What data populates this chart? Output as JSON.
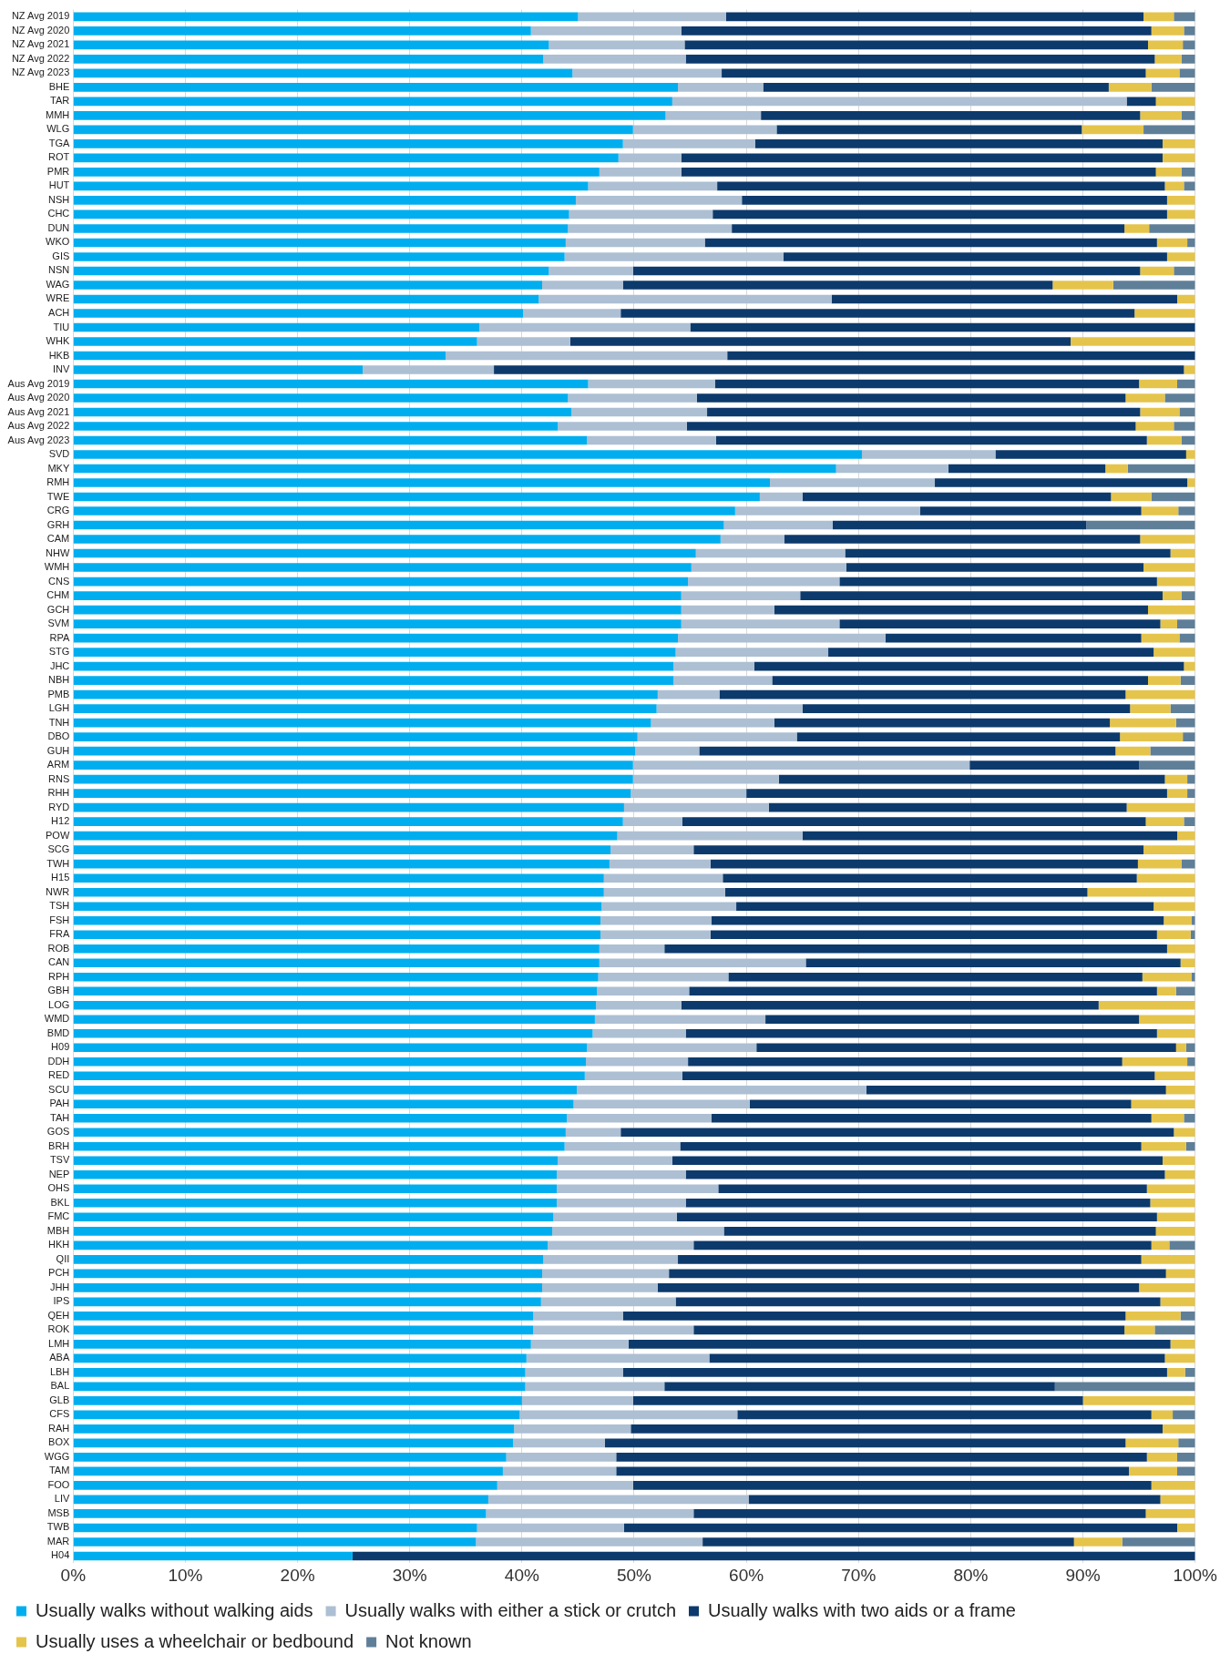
{
  "chart_data": {
    "type": "bar",
    "orientation": "horizontal",
    "stacked": true,
    "grid": "x",
    "legend": "bottom",
    "categories": [
      "NZ Avg 2019",
      "NZ Avg 2020",
      "NZ Avg 2021",
      "NZ Avg 2022",
      "NZ Avg 2023",
      "BHE",
      "TAR",
      "MMH",
      "WLG",
      "TGA",
      "ROT",
      "PMR",
      "HUT",
      "NSH",
      "CHC",
      "DUN",
      "WKO",
      "GIS",
      "NSN",
      "WAG",
      "WRE",
      "ACH",
      "TIU",
      "WHK",
      "HKB",
      "INV",
      "Aus Avg 2019",
      "Aus Avg 2020",
      "Aus Avg 2021",
      "Aus Avg 2022",
      "Aus Avg 2023",
      "SVD",
      "MKY",
      "RMH",
      "TWE",
      "CRG",
      "GRH",
      "CAM",
      "NHW",
      "WMH",
      "CNS",
      "CHM",
      "GCH",
      "SVM",
      "RPA",
      "STG",
      "JHC",
      "NBH",
      "PMB",
      "LGH",
      "TNH",
      "DBO",
      "GUH",
      "ARM",
      "RNS",
      "RHH",
      "RYD",
      "H12",
      "POW",
      "SCG",
      "TWH",
      "H15",
      "NWR",
      "TSH",
      "FSH",
      "FRA",
      "ROB",
      "CAN",
      "RPH",
      "GBH",
      "LOG",
      "WMD",
      "BMD",
      "H09",
      "DDH",
      "RED",
      "SCU",
      "PAH",
      "TAH",
      "GOS",
      "BRH",
      "TSV",
      "NEP",
      "OHS",
      "BKL",
      "FMC",
      "MBH",
      "HKH",
      "QII",
      "PCH",
      "JHH",
      "IPS",
      "QEH",
      "ROK",
      "LMH",
      "ABA",
      "LBH",
      "BAL",
      "GLB",
      "CFS",
      "RAH",
      "BOX",
      "WGG",
      "TAM",
      "FOO",
      "LIV",
      "MSB",
      "TWB",
      "MAR",
      "H04"
    ],
    "xlim": [
      0,
      100
    ],
    "xticks": [
      {
        "value": 0,
        "label": "0%"
      },
      {
        "value": 10,
        "label": "10%"
      },
      {
        "value": 20,
        "label": "20%"
      },
      {
        "value": 30,
        "label": "30%"
      },
      {
        "value": 40,
        "label": "40%"
      },
      {
        "value": 50,
        "label": "50%"
      },
      {
        "value": 60,
        "label": "60%"
      },
      {
        "value": 70,
        "label": "70%"
      },
      {
        "value": 80,
        "label": "80%"
      },
      {
        "value": 90,
        "label": "90%"
      },
      {
        "value": 100,
        "label": "100%"
      }
    ],
    "series": [
      {
        "name": "Usually walks without walking aids",
        "color": "#00aeef",
        "values": [
          45.0,
          40.8,
          42.4,
          41.9,
          44.5,
          53.9,
          53.4,
          52.8,
          49.9,
          49.0,
          48.6,
          46.9,
          45.9,
          44.8,
          44.2,
          44.1,
          43.9,
          43.8,
          42.4,
          41.8,
          41.5,
          40.1,
          36.2,
          36.0,
          33.2,
          25.8,
          45.9,
          44.1,
          44.4,
          43.2,
          45.8,
          70.3,
          68.0,
          62.1,
          61.2,
          59.0,
          58.0,
          57.7,
          55.5,
          55.1,
          54.8,
          54.2,
          54.2,
          54.2,
          53.9,
          53.7,
          53.5,
          53.5,
          52.1,
          52.0,
          51.5,
          50.3,
          50.1,
          49.9,
          49.9,
          49.7,
          49.1,
          49.0,
          48.5,
          47.9,
          47.8,
          47.3,
          47.3,
          47.1,
          47.0,
          47.0,
          46.9,
          46.9,
          46.8,
          46.7,
          46.6,
          46.5,
          46.3,
          45.8,
          45.7,
          45.6,
          44.9,
          44.6,
          44.0,
          43.9,
          43.8,
          43.2,
          43.1,
          43.1,
          43.1,
          42.8,
          42.7,
          42.3,
          41.9,
          41.8,
          41.8,
          41.7,
          41.0,
          41.0,
          40.8,
          40.4,
          40.3,
          40.3,
          40.0,
          39.8,
          39.3,
          39.2,
          38.6,
          38.3,
          37.8,
          37.0,
          36.8,
          36.0,
          35.9,
          24.9
        ]
      },
      {
        "name": "Usually walks with either a stick or crutch",
        "color": "#adbfd3",
        "values": [
          13.2,
          13.4,
          12.1,
          12.7,
          13.3,
          7.6,
          40.5,
          8.5,
          12.8,
          11.8,
          5.6,
          7.3,
          11.5,
          14.8,
          12.8,
          14.6,
          12.4,
          19.5,
          7.5,
          7.2,
          26.1,
          8.7,
          18.8,
          8.3,
          25.1,
          11.7,
          11.3,
          11.5,
          12.1,
          11.5,
          11.5,
          11.9,
          10.0,
          14.7,
          3.8,
          16.5,
          9.7,
          5.7,
          13.3,
          13.8,
          13.5,
          10.6,
          8.3,
          14.1,
          18.5,
          13.6,
          7.2,
          8.8,
          5.5,
          13.0,
          11.0,
          14.2,
          5.7,
          30.0,
          13.0,
          10.3,
          12.9,
          5.3,
          16.5,
          7.4,
          9.0,
          10.6,
          10.8,
          12.0,
          9.9,
          9.8,
          5.8,
          18.4,
          11.6,
          8.2,
          7.6,
          15.2,
          8.3,
          15.1,
          9.1,
          8.7,
          25.8,
          15.7,
          12.9,
          4.9,
          10.3,
          10.2,
          11.5,
          14.4,
          11.5,
          11.0,
          15.3,
          13.0,
          12.0,
          11.3,
          10.3,
          12.0,
          8.0,
          14.3,
          8.7,
          16.3,
          8.7,
          12.4,
          9.9,
          19.4,
          10.4,
          8.2,
          9.8,
          10.1,
          12.1,
          23.2,
          18.5,
          13.1,
          20.2,
          0
        ]
      },
      {
        "name": "Usually walks with two aids or a frame",
        "color": "#0d3a6c",
        "values": [
          37.2,
          41.9,
          41.3,
          41.8,
          37.8,
          30.8,
          2.6,
          33.8,
          27.2,
          36.3,
          42.9,
          42.3,
          39.9,
          37.9,
          40.5,
          35.0,
          40.3,
          34.2,
          45.2,
          38.3,
          30.8,
          45.8,
          45.0,
          44.6,
          41.7,
          61.5,
          37.8,
          38.2,
          38.6,
          40.0,
          38.4,
          17.0,
          14.0,
          22.5,
          27.5,
          19.7,
          22.6,
          31.7,
          29.0,
          26.5,
          28.3,
          32.3,
          33.3,
          28.6,
          22.8,
          29.0,
          38.3,
          33.5,
          36.2,
          29.2,
          29.9,
          28.8,
          37.1,
          15.1,
          34.4,
          37.5,
          31.9,
          41.3,
          33.4,
          40.1,
          38.1,
          36.9,
          32.3,
          37.2,
          40.3,
          39.8,
          44.8,
          33.4,
          36.9,
          41.7,
          37.2,
          33.3,
          42.0,
          37.4,
          38.7,
          42.1,
          26.7,
          34.0,
          39.2,
          49.3,
          41.1,
          43.7,
          42.7,
          38.2,
          41.4,
          42.8,
          38.5,
          40.8,
          41.3,
          44.3,
          42.9,
          43.2,
          44.8,
          38.4,
          48.3,
          40.6,
          48.5,
          34.8,
          40.1,
          36.9,
          47.4,
          46.4,
          47.3,
          45.7,
          46.2,
          36.7,
          40.3,
          49.3,
          33.1,
          75.1
        ]
      },
      {
        "name": "Usually uses a wheelchair or bedbound",
        "color": "#e5c44c",
        "values": [
          2.7,
          2.9,
          3.1,
          2.4,
          3.0,
          3.8,
          3.5,
          3.7,
          5.5,
          2.9,
          2.9,
          2.3,
          1.7,
          2.5,
          2.5,
          2.2,
          2.7,
          2.5,
          3.0,
          5.4,
          1.6,
          5.4,
          0,
          11.1,
          0,
          1.0,
          3.4,
          3.5,
          3.5,
          3.4,
          3.1,
          0.8,
          2.0,
          0.7,
          3.6,
          3.3,
          0,
          4.9,
          2.2,
          4.6,
          3.4,
          1.7,
          4.2,
          1.5,
          3.4,
          3.7,
          1.0,
          2.9,
          6.2,
          3.6,
          5.9,
          5.6,
          3.1,
          0,
          2.0,
          1.8,
          6.1,
          3.4,
          1.6,
          4.6,
          3.9,
          5.2,
          9.6,
          3.7,
          2.5,
          3.0,
          2.5,
          1.3,
          4.4,
          1.7,
          8.6,
          5.0,
          3.4,
          0.9,
          5.8,
          3.6,
          2.6,
          5.7,
          2.9,
          1.9,
          4.0,
          2.9,
          2.7,
          4.3,
          4.0,
          3.4,
          3.5,
          1.6,
          4.8,
          2.6,
          5.0,
          3.1,
          4.9,
          2.7,
          2.2,
          2.7,
          1.6,
          0,
          10.0,
          1.9,
          2.9,
          4.7,
          2.7,
          4.3,
          3.9,
          3.1,
          4.4,
          1.6,
          4.3,
          0
        ]
      },
      {
        "name": "Not known",
        "color": "#5f7f99",
        "values": [
          1.9,
          1.0,
          1.1,
          1.2,
          1.4,
          3.9,
          0,
          1.2,
          4.6,
          0,
          0,
          1.2,
          1.0,
          0,
          0,
          4.1,
          0.7,
          0,
          1.9,
          7.3,
          0,
          0,
          0,
          0,
          0,
          0,
          1.6,
          2.7,
          1.4,
          1.9,
          1.2,
          0,
          6.0,
          0,
          3.9,
          1.5,
          9.7,
          0,
          0,
          0,
          0,
          1.2,
          0,
          1.6,
          1.4,
          0,
          0,
          1.3,
          0,
          2.2,
          1.7,
          1.1,
          4.0,
          5.0,
          0.7,
          0.7,
          0,
          1.0,
          0,
          0,
          1.2,
          0,
          0,
          0,
          0.3,
          0.4,
          0,
          0,
          0.3,
          1.7,
          0,
          0,
          0,
          0.8,
          0.7,
          0,
          0,
          0,
          1.0,
          0,
          0.8,
          0,
          0,
          0,
          0,
          0,
          0,
          2.3,
          0,
          0,
          0,
          0,
          1.3,
          3.6,
          0,
          0,
          0.9,
          12.5,
          0,
          2.0,
          0,
          1.5,
          1.6,
          1.6,
          0,
          0,
          0,
          0,
          6.5,
          0
        ]
      }
    ]
  }
}
